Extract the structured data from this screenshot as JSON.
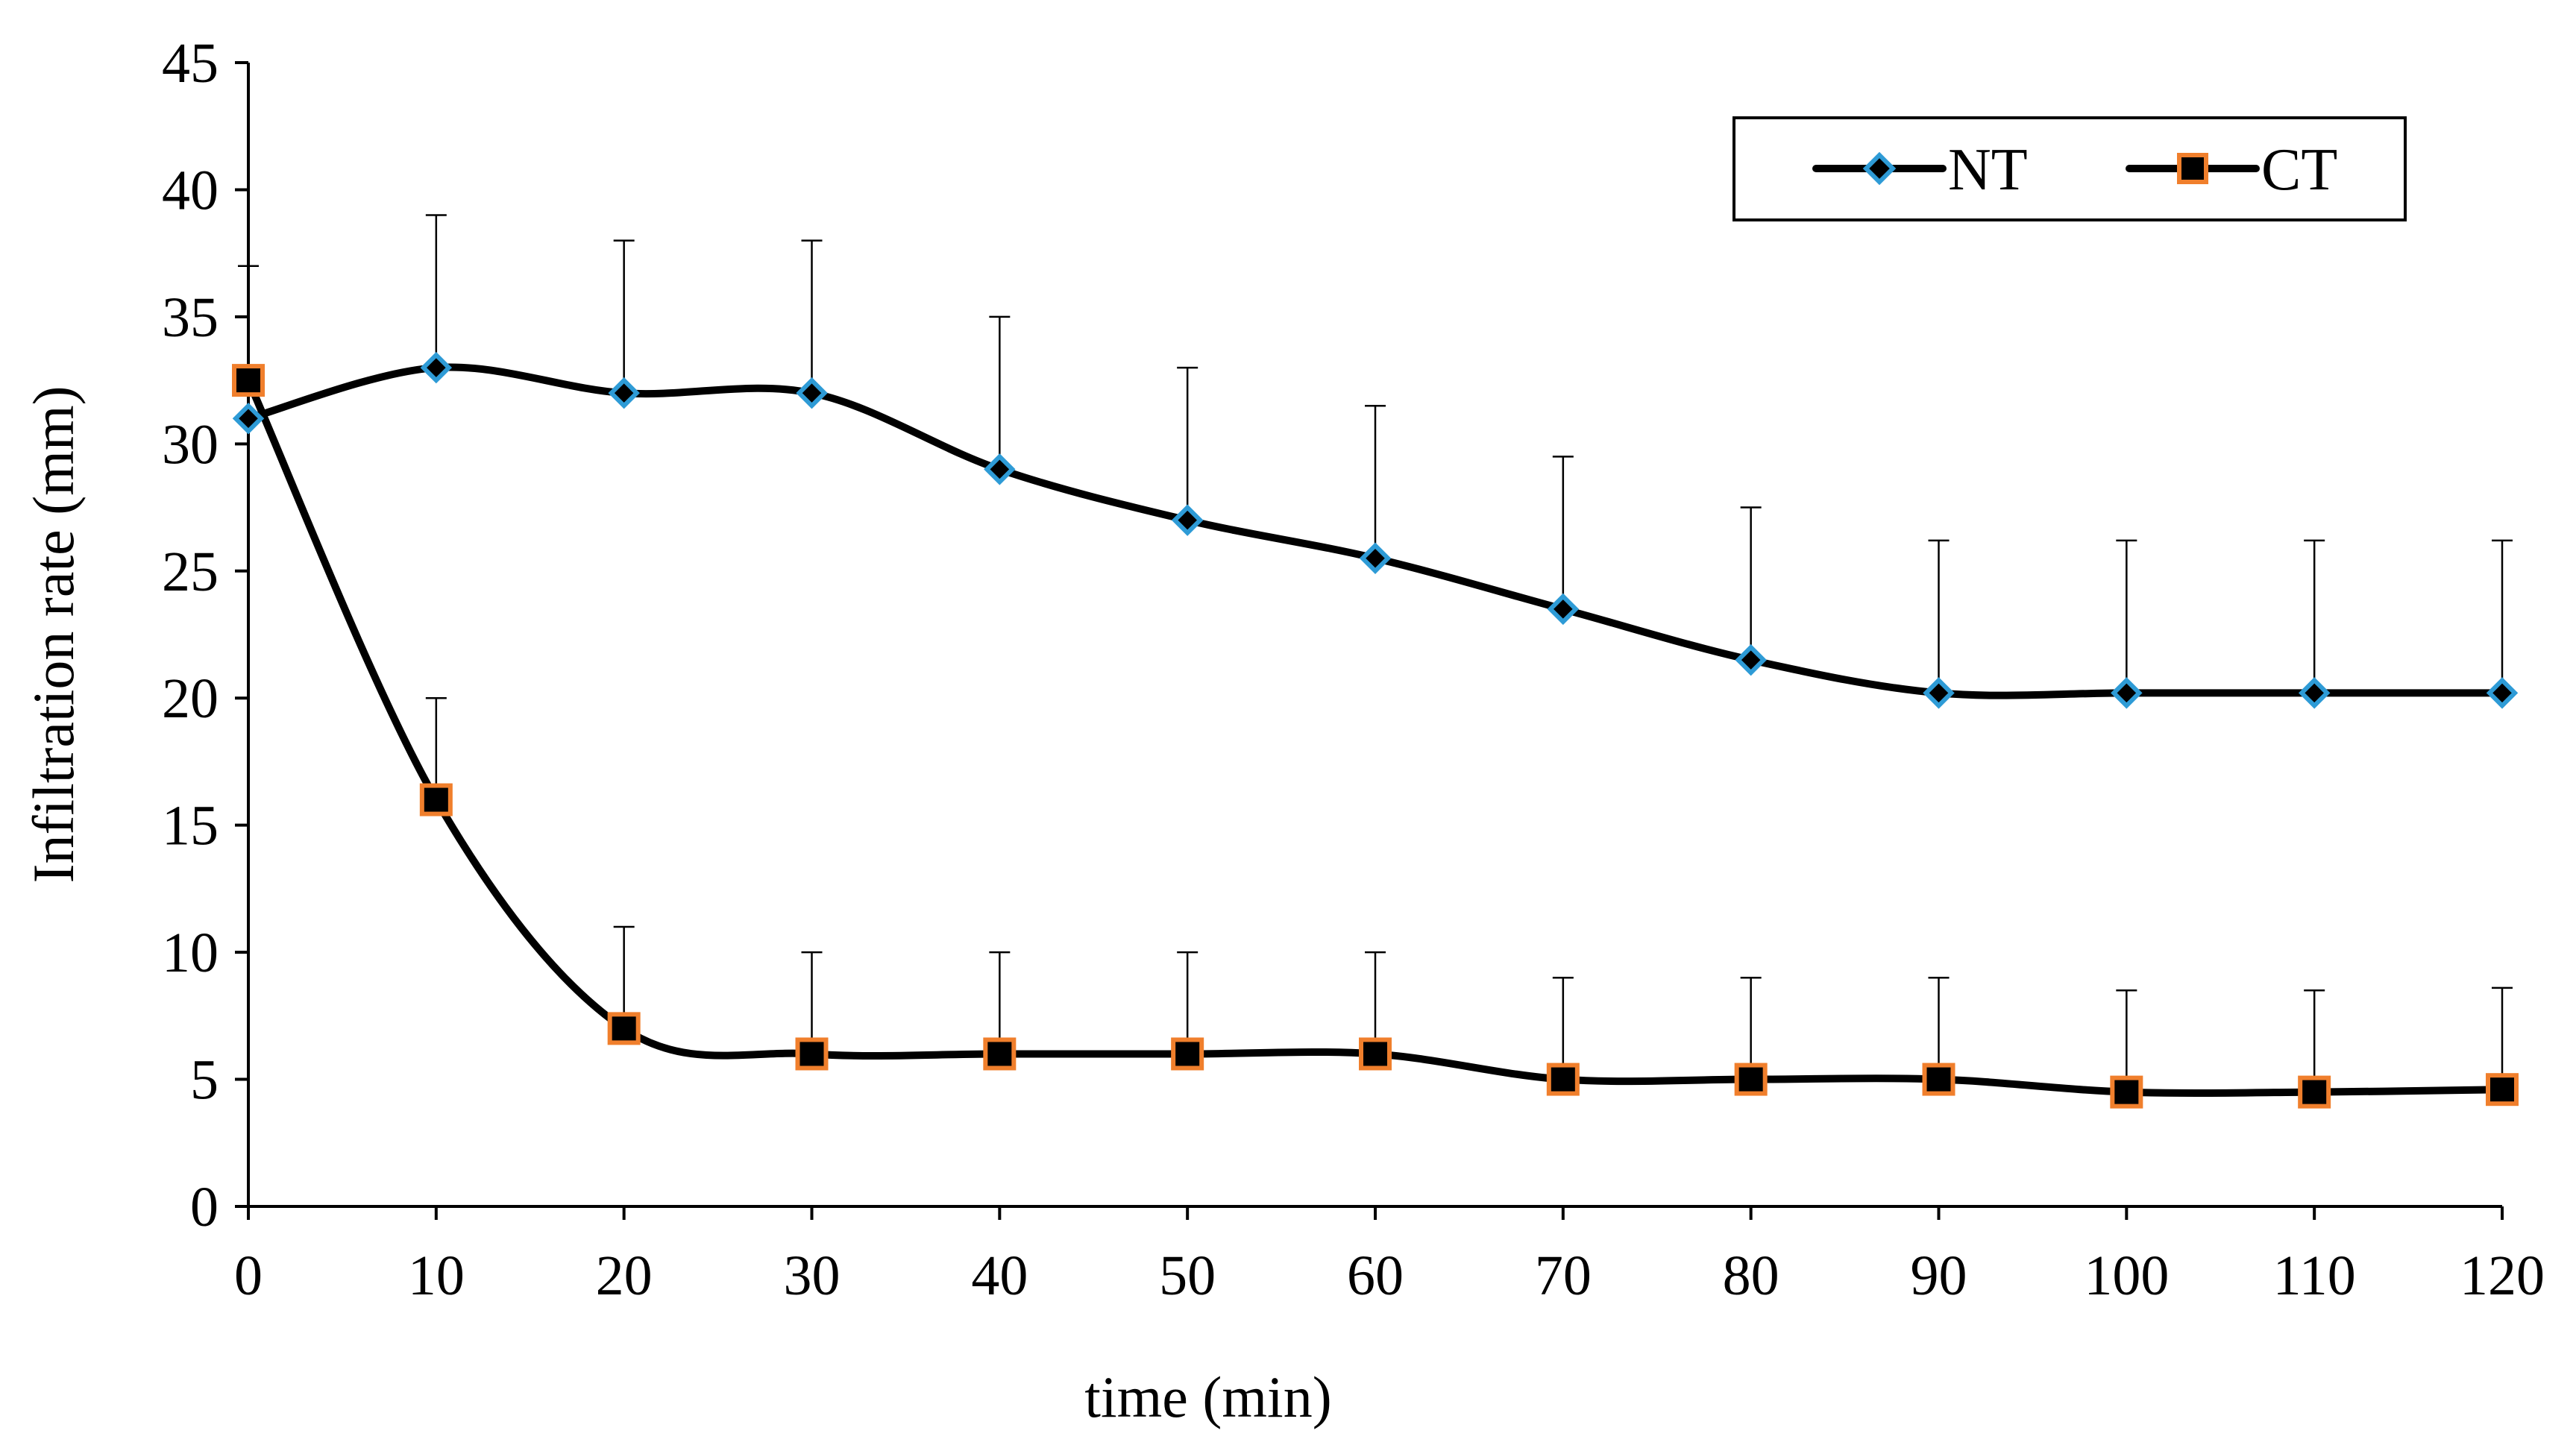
{
  "chart_data": {
    "type": "line",
    "title": "",
    "xlabel": "time (min)",
    "ylabel": "Infiltration rate (mm)",
    "x": [
      0,
      10,
      20,
      30,
      40,
      50,
      60,
      70,
      80,
      90,
      100,
      110,
      120
    ],
    "xlim": [
      0,
      120
    ],
    "ylim": [
      0,
      45
    ],
    "x_ticks": [
      "0",
      "10",
      "20",
      "30",
      "40",
      "50",
      "60",
      "70",
      "80",
      "90",
      "100",
      "110",
      "120"
    ],
    "y_ticks": [
      "0",
      "5",
      "10",
      "15",
      "20",
      "25",
      "30",
      "35",
      "40",
      "45"
    ],
    "grid": false,
    "legend_position": "top-right",
    "series": [
      {
        "name": "NT",
        "marker": "diamond",
        "marker_fill": "#000000",
        "marker_edge": "#2e9bd6",
        "values": [
          31,
          33,
          32,
          32,
          29,
          27,
          25.5,
          23.5,
          21.5,
          20.2,
          20.2,
          20.2,
          20.2
        ],
        "error_upper": [
          6,
          6,
          6,
          6,
          6,
          6,
          6,
          6,
          6,
          6,
          6,
          6,
          6
        ]
      },
      {
        "name": "CT",
        "marker": "square",
        "marker_fill": "#000000",
        "marker_edge": "#f07f2c",
        "values": [
          32.5,
          16,
          7,
          6,
          6,
          6,
          6,
          5,
          5,
          5,
          4.5,
          4.5,
          4.6
        ],
        "error_upper": [
          4.5,
          4,
          4,
          4,
          4,
          4,
          4,
          4,
          4,
          4,
          4,
          4,
          4
        ]
      }
    ]
  }
}
